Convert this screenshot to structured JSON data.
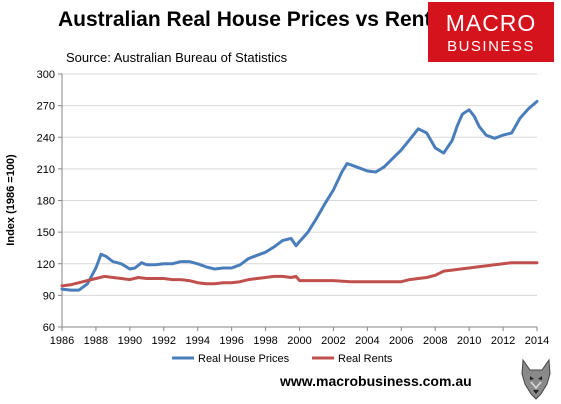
{
  "header": {
    "title": "Australian Real House Prices vs Rents",
    "source": "Source: Australian Bureau of Statistics"
  },
  "logo": {
    "line1": "MACRO",
    "line2": "BUSINESS",
    "color": "#d5131c"
  },
  "footer": {
    "url": "www.macrobusiness.com.au"
  },
  "chart_data": {
    "type": "line",
    "ylabel": "Index (1986 =100)",
    "xlabel": "",
    "ylim": [
      60,
      300
    ],
    "yticks": [
      60,
      90,
      120,
      150,
      180,
      210,
      240,
      270,
      300
    ],
    "xlim": [
      1986,
      2014
    ],
    "xticks": [
      1986,
      1988,
      1990,
      1992,
      1994,
      1996,
      1998,
      2000,
      2002,
      2004,
      2006,
      2008,
      2010,
      2012,
      2014
    ],
    "grid": "horizontal",
    "legend_position": "bottom",
    "series": [
      {
        "name": "Real House Prices",
        "color": "#4a7ebb",
        "x": [
          1986,
          1986.5,
          1987,
          1987.5,
          1988,
          1988.3,
          1988.6,
          1989,
          1989.5,
          1990,
          1990.3,
          1990.7,
          1991,
          1991.5,
          1992,
          1992.5,
          1993,
          1993.5,
          1994,
          1994.5,
          1995,
          1995.5,
          1996,
          1996.5,
          1997,
          1997.5,
          1998,
          1998.5,
          1999,
          1999.5,
          1999.8,
          2000,
          2000.5,
          2001,
          2001.5,
          2002,
          2002.5,
          2002.8,
          2003,
          2003.5,
          2004,
          2004.5,
          2005,
          2005.5,
          2006,
          2006.5,
          2007,
          2007.5,
          2008,
          2008.3,
          2008.5,
          2009,
          2009.3,
          2009.6,
          2010,
          2010.3,
          2010.6,
          2011,
          2011.5,
          2012,
          2012.5,
          2013,
          2013.5,
          2014
        ],
        "values": [
          96,
          95,
          95,
          101,
          116,
          129,
          127,
          122,
          120,
          115,
          116,
          121,
          119,
          119,
          120,
          120,
          122,
          122,
          120,
          117,
          115,
          116,
          116,
          119,
          125,
          128,
          131,
          136,
          142,
          144,
          137,
          141,
          150,
          163,
          177,
          190,
          207,
          215,
          214,
          211,
          208,
          207,
          212,
          220,
          228,
          238,
          248,
          244,
          230,
          227,
          225,
          237,
          251,
          262,
          266,
          260,
          250,
          242,
          239,
          242,
          244,
          258,
          267,
          274
        ]
      },
      {
        "name": "Real Rents",
        "color": "#c0504d",
        "x": [
          1986,
          1986.5,
          1987,
          1987.5,
          1988,
          1988.5,
          1989,
          1989.5,
          1990,
          1990.5,
          1991,
          1991.5,
          1992,
          1992.5,
          1993,
          1993.5,
          1994,
          1994.5,
          1995,
          1995.5,
          1996,
          1996.5,
          1997,
          1997.5,
          1998,
          1998.5,
          1999,
          1999.5,
          1999.8,
          2000,
          2001,
          2002,
          2003,
          2004,
          2005,
          2006,
          2006.5,
          2007,
          2007.5,
          2008,
          2008.5,
          2009,
          2009.5,
          2010,
          2010.5,
          2011,
          2011.5,
          2012,
          2012.5,
          2013,
          2014
        ],
        "values": [
          99,
          100,
          102,
          104,
          106,
          108,
          107,
          106,
          105,
          107,
          106,
          106,
          106,
          105,
          105,
          104,
          102,
          101,
          101,
          102,
          102,
          103,
          105,
          106,
          107,
          108,
          108,
          107,
          108,
          104,
          104,
          104,
          103,
          103,
          103,
          103,
          105,
          106,
          107,
          109,
          113,
          114,
          115,
          116,
          117,
          118,
          119,
          120,
          121,
          121,
          121
        ]
      }
    ]
  }
}
